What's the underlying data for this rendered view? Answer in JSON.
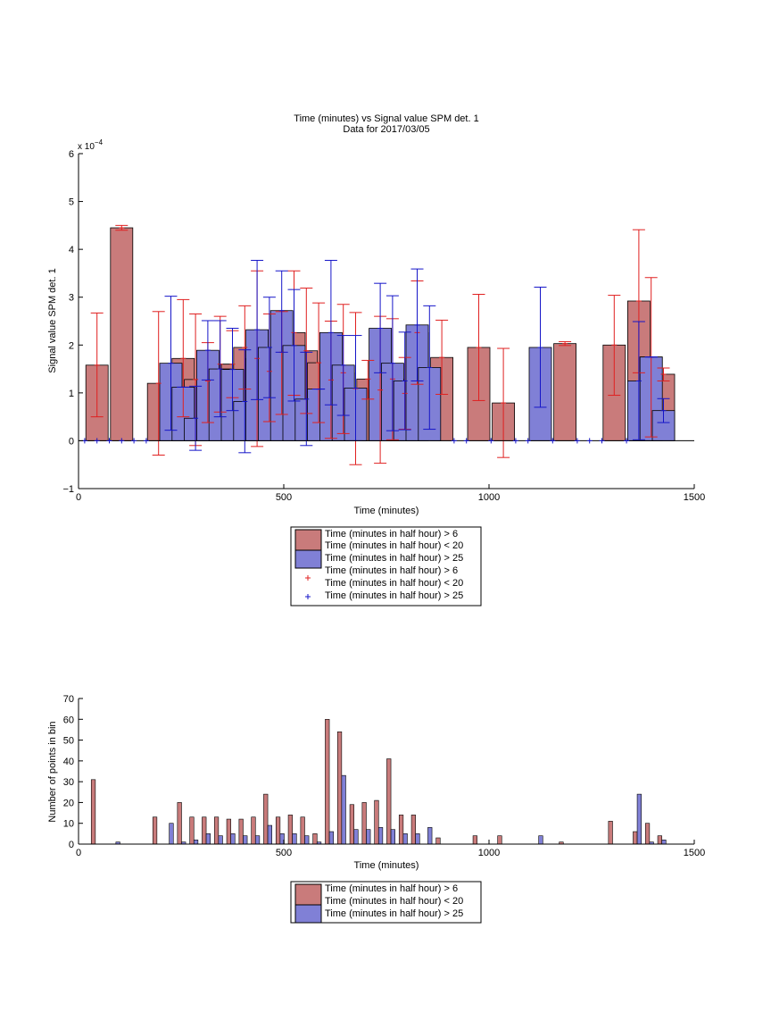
{
  "colors": {
    "red_fill": "#c97b7b",
    "blue_fill": "#8080d6",
    "red_line": "#e02020",
    "blue_line": "#1515c8",
    "axis": "#000000"
  },
  "chart_data": [
    {
      "type": "bar",
      "title": "Time (minutes) vs Signal value SPM det. 1",
      "subtitle": "Data for 2017/03/05",
      "xlabel": "Time (minutes)",
      "ylabel": "Signal value SPM det. 1",
      "xlim": [
        0,
        1500
      ],
      "ylim": [
        -1,
        6
      ],
      "xticks": [
        0,
        500,
        1000,
        1500
      ],
      "yticks": [
        -1,
        0,
        1,
        2,
        3,
        4,
        5,
        6
      ],
      "y_exponent_label": "x 10",
      "y_exponent_power": "−4",
      "grid": false,
      "legend_position": "bottom-outside",
      "legend": [
        "Time (minutes in half hour) > 6",
        "Time (minutes in half hour) < 20",
        "Time (minutes in half hour) > 25",
        "Time (minutes in half hour) > 6",
        "Time (minutes in half hour) < 20",
        "Time (minutes in half hour) > 25"
      ],
      "series": [
        {
          "color": "red",
          "bars": [
            {
              "x": 45,
              "y": 1.58,
              "lo": 0.5,
              "hi": 2.67
            },
            {
              "x": 105,
              "y": 4.45,
              "lo": 4.4,
              "hi": 4.5
            },
            {
              "x": 195,
              "y": 1.2,
              "lo": -0.3,
              "hi": 2.7
            },
            {
              "x": 255,
              "y": 1.72,
              "lo": 0.5,
              "hi": 2.95
            },
            {
              "x": 285,
              "y": 1.28,
              "lo": -0.1,
              "hi": 2.65
            },
            {
              "x": 315,
              "y": 1.25,
              "lo": 0.38,
              "hi": 2.05
            },
            {
              "x": 345,
              "y": 1.6,
              "lo": 0.6,
              "hi": 2.6
            },
            {
              "x": 375,
              "y": 1.6,
              "lo": 0.9,
              "hi": 2.3
            },
            {
              "x": 405,
              "y": 1.95,
              "lo": 1.08,
              "hi": 2.82
            },
            {
              "x": 435,
              "y": 1.72,
              "lo": -0.12,
              "hi": 3.55
            },
            {
              "x": 465,
              "y": 1.45,
              "lo": 0.4,
              "hi": 2.65
            },
            {
              "x": 495,
              "y": 1.85,
              "lo": 0.55,
              "hi": 2.7
            },
            {
              "x": 525,
              "y": 2.26,
              "lo": 0.95,
              "hi": 3.55
            },
            {
              "x": 555,
              "y": 1.88,
              "lo": 0.57,
              "hi": 3.19
            },
            {
              "x": 585,
              "y": 1.63,
              "lo": 0.38,
              "hi": 2.88
            },
            {
              "x": 615,
              "y": 1.27,
              "lo": 0.05,
              "hi": 2.5
            },
            {
              "x": 645,
              "y": 1.42,
              "lo": 0.15,
              "hi": 2.85
            },
            {
              "x": 675,
              "y": 1.09,
              "lo": -0.5,
              "hi": 2.68
            },
            {
              "x": 705,
              "y": 1.29,
              "lo": 0.87,
              "hi": 1.68
            },
            {
              "x": 735,
              "y": 1.06,
              "lo": -0.47,
              "hi": 2.6
            },
            {
              "x": 765,
              "y": 1.29,
              "lo": 0.02,
              "hi": 2.55
            },
            {
              "x": 795,
              "y": 0.99,
              "lo": 0.24,
              "hi": 1.74
            },
            {
              "x": 825,
              "y": 2.26,
              "lo": 1.18,
              "hi": 3.34
            },
            {
              "x": 885,
              "y": 1.74,
              "lo": 0.97,
              "hi": 2.52
            },
            {
              "x": 975,
              "y": 1.95,
              "lo": 0.84,
              "hi": 3.06
            },
            {
              "x": 1035,
              "y": 0.79,
              "lo": -0.35,
              "hi": 1.93
            },
            {
              "x": 1185,
              "y": 2.03,
              "lo": 1.99,
              "hi": 2.07
            },
            {
              "x": 1305,
              "y": 2.0,
              "lo": 0.95,
              "hi": 3.04
            },
            {
              "x": 1365,
              "y": 2.92,
              "lo": 1.42,
              "hi": 4.41
            },
            {
              "x": 1395,
              "y": 1.75,
              "lo": 0.08,
              "hi": 3.41
            },
            {
              "x": 1425,
              "y": 1.39,
              "lo": 1.25,
              "hi": 1.52
            }
          ]
        },
        {
          "color": "blue",
          "bars": [
            {
              "x": 225,
              "y": 1.62,
              "lo": 0.22,
              "hi": 3.02
            },
            {
              "x": 255,
              "y": 1.12,
              "lo": 1.12,
              "hi": 1.12
            },
            {
              "x": 285,
              "y": 0.47,
              "lo": -0.2,
              "hi": 1.14
            },
            {
              "x": 315,
              "y": 1.89,
              "lo": 1.27,
              "hi": 2.51
            },
            {
              "x": 345,
              "y": 1.5,
              "lo": 0.5,
              "hi": 2.51
            },
            {
              "x": 375,
              "y": 1.49,
              "lo": 0.63,
              "hi": 2.35
            },
            {
              "x": 405,
              "y": 0.82,
              "lo": -0.25,
              "hi": 1.9
            },
            {
              "x": 435,
              "y": 2.32,
              "lo": 0.86,
              "hi": 3.77
            },
            {
              "x": 465,
              "y": 1.95,
              "lo": 0.9,
              "hi": 3.0
            },
            {
              "x": 495,
              "y": 2.72,
              "lo": 1.85,
              "hi": 3.55
            },
            {
              "x": 525,
              "y": 1.99,
              "lo": 0.83,
              "hi": 3.16
            },
            {
              "x": 555,
              "y": 0.87,
              "lo": -0.1,
              "hi": 1.85
            },
            {
              "x": 585,
              "y": 1.08,
              "lo": 1.08,
              "hi": 1.08
            },
            {
              "x": 615,
              "y": 2.26,
              "lo": 0.75,
              "hi": 3.77
            },
            {
              "x": 645,
              "y": 1.58,
              "lo": 0.53,
              "hi": 2.2
            },
            {
              "x": 675,
              "y": 1.1,
              "lo": 0.0,
              "hi": 2.2
            },
            {
              "x": 735,
              "y": 2.35,
              "lo": 1.42,
              "hi": 3.29
            },
            {
              "x": 765,
              "y": 1.62,
              "lo": 0.21,
              "hi": 3.03
            },
            {
              "x": 795,
              "y": 1.25,
              "lo": 0.23,
              "hi": 2.27
            },
            {
              "x": 825,
              "y": 2.42,
              "lo": 1.25,
              "hi": 3.59
            },
            {
              "x": 855,
              "y": 1.53,
              "lo": 0.24,
              "hi": 2.82
            },
            {
              "x": 1125,
              "y": 1.95,
              "lo": 0.7,
              "hi": 3.21
            },
            {
              "x": 1365,
              "y": 1.25,
              "lo": 0.02,
              "hi": 2.49
            },
            {
              "x": 1395,
              "y": 1.75,
              "lo": 1.75,
              "hi": 1.75
            },
            {
              "x": 1425,
              "y": 0.63,
              "lo": 0.38,
              "hi": 0.88
            }
          ],
          "zero_markers": [
            15,
            45,
            75,
            105,
            135,
            165,
            915,
            945,
            1005,
            1065,
            1095,
            1155,
            1215,
            1245,
            1275,
            1335
          ]
        }
      ]
    },
    {
      "type": "bar",
      "xlabel": "Time (minutes)",
      "ylabel": "Number of points in bin",
      "xlim": [
        0,
        1500
      ],
      "ylim": [
        0,
        70
      ],
      "xticks": [
        0,
        500,
        1000,
        1500
      ],
      "yticks": [
        0,
        10,
        20,
        30,
        40,
        50,
        60,
        70
      ],
      "grid": false,
      "legend_position": "bottom-outside",
      "legend": [
        "Time (minutes in half hour) > 6",
        "Time (minutes in half hour) < 20",
        "Time (minutes in half hour) > 25"
      ],
      "series": [
        {
          "color": "red",
          "points": [
            [
              36,
              31
            ],
            [
              186,
              13
            ],
            [
              246,
              20
            ],
            [
              276,
              13
            ],
            [
              306,
              13
            ],
            [
              336,
              13
            ],
            [
              366,
              12
            ],
            [
              396,
              12
            ],
            [
              426,
              13
            ],
            [
              456,
              24
            ],
            [
              486,
              13
            ],
            [
              516,
              14
            ],
            [
              546,
              13
            ],
            [
              576,
              5
            ],
            [
              606,
              60
            ],
            [
              636,
              54
            ],
            [
              666,
              19
            ],
            [
              696,
              20
            ],
            [
              726,
              21
            ],
            [
              756,
              41
            ],
            [
              786,
              14
            ],
            [
              816,
              14
            ],
            [
              876,
              3
            ],
            [
              966,
              4
            ],
            [
              1026,
              4
            ],
            [
              1176,
              1
            ],
            [
              1296,
              11
            ],
            [
              1356,
              6
            ],
            [
              1386,
              10
            ],
            [
              1416,
              4
            ]
          ]
        },
        {
          "color": "blue",
          "points": [
            [
              96,
              1
            ],
            [
              226,
              10
            ],
            [
              256,
              1
            ],
            [
              286,
              2
            ],
            [
              316,
              5
            ],
            [
              346,
              4
            ],
            [
              376,
              5
            ],
            [
              406,
              4
            ],
            [
              436,
              4
            ],
            [
              466,
              9
            ],
            [
              496,
              5
            ],
            [
              526,
              5
            ],
            [
              556,
              4
            ],
            [
              586,
              1
            ],
            [
              616,
              6
            ],
            [
              646,
              33
            ],
            [
              676,
              7
            ],
            [
              706,
              7
            ],
            [
              736,
              8
            ],
            [
              766,
              7
            ],
            [
              796,
              5
            ],
            [
              826,
              5
            ],
            [
              856,
              8
            ],
            [
              1126,
              4
            ],
            [
              1366,
              24
            ],
            [
              1396,
              1
            ],
            [
              1426,
              2
            ]
          ]
        }
      ]
    }
  ]
}
